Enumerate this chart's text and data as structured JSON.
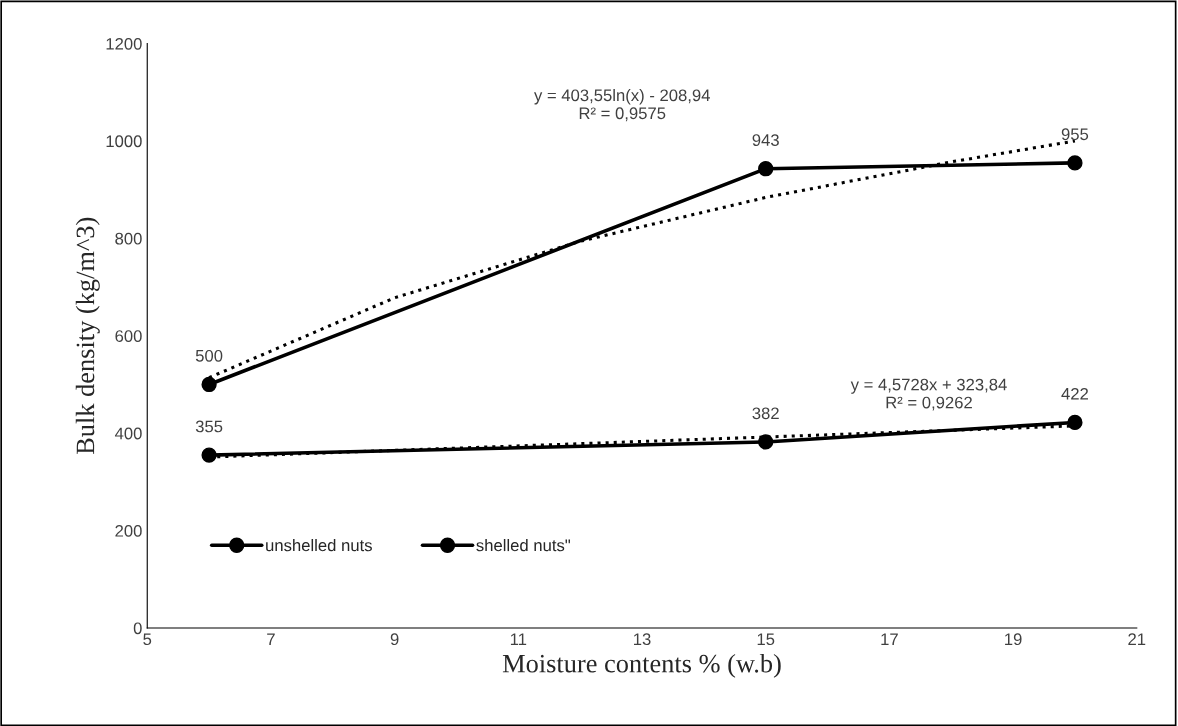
{
  "chart_data": {
    "type": "line",
    "xlabel": "Moisture contents % (w.b)",
    "ylabel": "Bulk density (kg/m^3)",
    "xlim": [
      5,
      21
    ],
    "xticks": [
      5,
      7,
      9,
      11,
      13,
      15,
      17,
      19,
      21
    ],
    "ylim": [
      0,
      1200
    ],
    "yticks": [
      0,
      200,
      400,
      600,
      800,
      1000,
      1200
    ],
    "grid": false,
    "legend": "bottom left",
    "marker": "circle",
    "line_style": "solid",
    "series": [
      {
        "name": "unshelled nuts",
        "color": "#000000",
        "x": [
          6,
          15,
          20
        ],
        "values": [
          500,
          943,
          955
        ],
        "value_labels": [
          "500",
          "943",
          "955"
        ]
      },
      {
        "name": "shelled nuts\"",
        "color": "#000000",
        "x": [
          6,
          15,
          20
        ],
        "values": [
          355,
          382,
          422
        ],
        "value_labels": [
          "355",
          "382",
          "422"
        ]
      },
      {
        "type": "line",
        "color": "#000000",
        "marker": "none",
        "line_style": "dotted",
        "x": [
          6,
          9,
          12,
          15,
          18,
          20
        ],
        "values": [
          514,
          678,
          794,
          884,
          957,
          1000
        ]
      },
      {
        "type": "line",
        "color": "#000000",
        "marker": "none",
        "line_style": "dotted",
        "x": [
          6,
          20
        ],
        "values": [
          351,
          415
        ]
      }
    ],
    "annotations": [
      "y = 403,55ln(x) - 208,94\nR² = 0,9575",
      "y = 4,5728x + 323,84\nR² = 0,9262"
    ]
  }
}
